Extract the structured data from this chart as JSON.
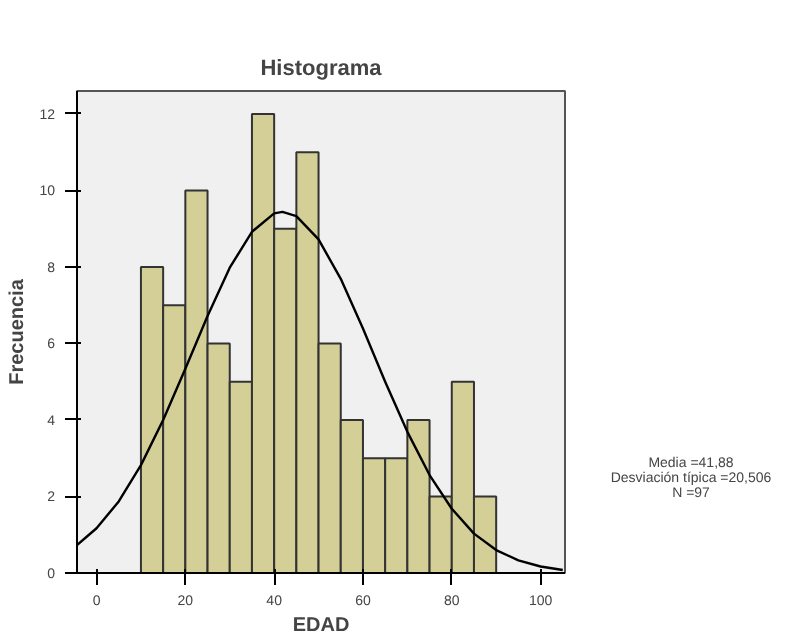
{
  "chart_data": {
    "type": "histogram",
    "title": "Histograma",
    "xlabel": "EDAD",
    "ylabel": "Frecuencia",
    "bins": [
      10,
      15,
      20,
      25,
      30,
      35,
      40,
      45,
      50,
      55,
      60,
      65,
      70,
      75,
      80,
      85,
      90
    ],
    "values": [
      8,
      7,
      10,
      6,
      5,
      12,
      9,
      11,
      6,
      4,
      3,
      3,
      4,
      2,
      5,
      2
    ],
    "color": "#d3cf97",
    "series": [
      {
        "type": "line",
        "color": "#000000",
        "x": [
          -4.4,
          0,
          5,
          10,
          15,
          20,
          25,
          30,
          35,
          40,
          41.88,
          45,
          50,
          55,
          60,
          65,
          70,
          75,
          80,
          85,
          90,
          95,
          100,
          105
        ],
        "values": [
          0.73,
          1.17,
          1.87,
          2.82,
          4.0,
          5.34,
          6.72,
          7.98,
          8.92,
          9.4,
          9.44,
          9.33,
          8.72,
          7.69,
          6.39,
          5.0,
          3.69,
          2.56,
          1.68,
          1.03,
          0.6,
          0.33,
          0.17,
          0.08
        ]
      }
    ],
    "xlim": [
      -4.4,
      105.5
    ],
    "ylim": [
      0,
      12.6
    ],
    "xticks": [
      0,
      20,
      40,
      60,
      80,
      100
    ],
    "yticks": [
      0,
      2,
      4,
      6,
      8,
      10,
      12
    ],
    "grid": false,
    "annotations": [
      "Media =41,88",
      "Desviación típica =20,506",
      "N =97"
    ]
  }
}
